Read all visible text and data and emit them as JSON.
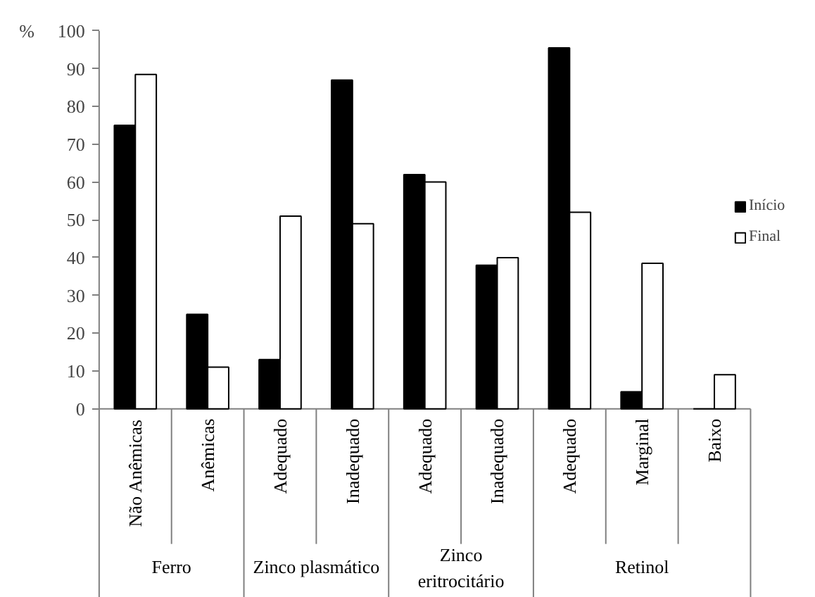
{
  "chart_data": {
    "type": "bar",
    "ylabel": "%",
    "categories": [
      "Não Anêmicas",
      "Anêmicas",
      "Adequado",
      "Inadequado",
      "Adequado",
      "Inadequado",
      "Adequado",
      "Marginal",
      "Baixo"
    ],
    "series": [
      {
        "name": "Início",
        "color": "#000000",
        "values": [
          75,
          25,
          13,
          87,
          62,
          38,
          95.5,
          4.5,
          0
        ]
      },
      {
        "name": "Final",
        "color": "#ffffff",
        "values": [
          88.5,
          11,
          51,
          49,
          60,
          40,
          52,
          38.5,
          9
        ]
      }
    ],
    "annotations": [
      "Ferro",
      "Zinco plasmático",
      "Zinco eritrocitário",
      "Retinol"
    ],
    "ylim": [
      0,
      100
    ],
    "yticks": [
      0,
      10,
      20,
      30,
      40,
      50,
      60,
      70,
      80,
      90,
      100
    ],
    "grid": false,
    "legend": "right"
  }
}
